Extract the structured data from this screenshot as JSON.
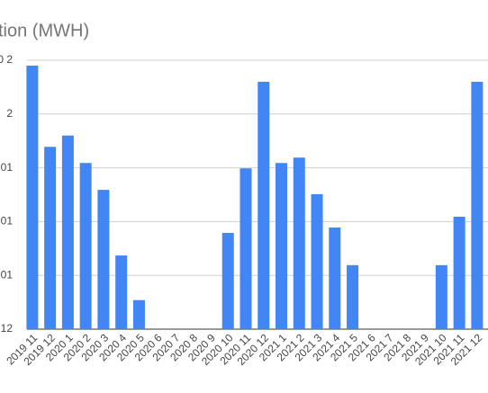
{
  "chart_data": {
    "type": "bar",
    "title": "tion (MWH)",
    "categories": [
      "2019 11",
      "2019 12",
      "2020 1",
      "2020 2",
      "2020 3",
      "2020 4",
      "2020 5",
      "2020 6",
      "2020 7",
      "2020 8",
      "2020 9",
      "2020 10",
      "2020 11",
      "2020 12",
      "2021 1",
      "2021 2",
      "2021 3",
      "2021 4",
      "2021 5",
      "2021 6",
      "2021 7",
      "2021 8",
      "2021 9",
      "2021 10",
      "2021 11",
      "2021 12"
    ],
    "values": [
      4.9,
      3.39,
      3.6,
      3.09,
      2.59,
      1.37,
      0.54,
      0,
      0,
      0,
      0,
      1.79,
      2.99,
      4.6,
      3.09,
      3.19,
      2.51,
      1.89,
      1.19,
      0,
      0,
      0,
      0,
      1.19,
      2.09,
      4.6
    ],
    "color": "#4285f4",
    "ylim": [
      0,
      5
    ],
    "yticks": [
      {
        "value": 0,
        "label": "12"
      },
      {
        "value": 1,
        "label": "01"
      },
      {
        "value": 2,
        "label": "01"
      },
      {
        "value": 3,
        "label": "01"
      },
      {
        "value": 4,
        "label": "2"
      },
      {
        "value": 5,
        "label": "0 2"
      }
    ],
    "grid": true
  }
}
